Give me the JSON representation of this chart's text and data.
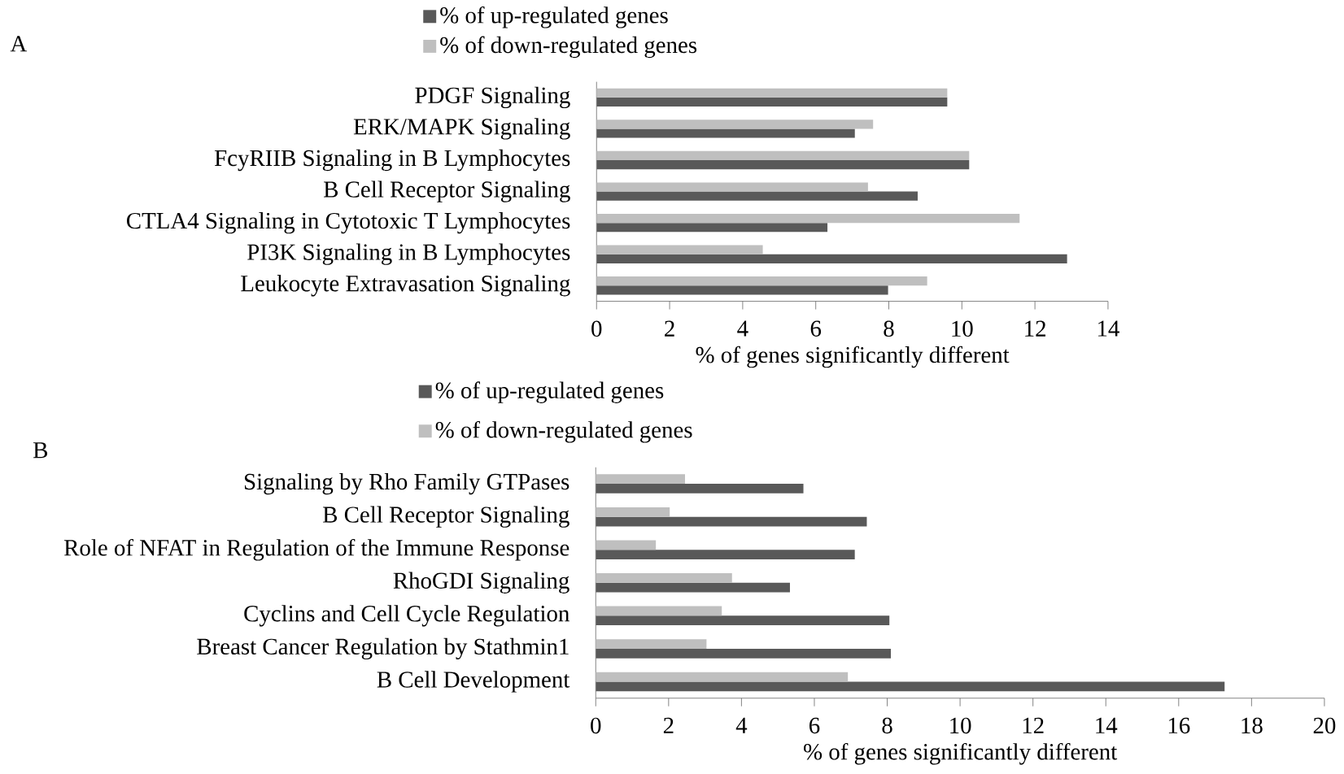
{
  "chart_data": [
    {
      "type": "bar",
      "orientation": "horizontal",
      "title": "A",
      "legend": "top",
      "xlabel": "% of genes significantly different",
      "categories": [
        "PDGF Signaling",
        "ERK/MAPK Signaling",
        "FcyRIIB Signaling in B Lymphocytes",
        "B Cell Receptor Signaling",
        "CTLA4 Signaling in Cytotoxic T Lymphocytes",
        "PI3K Signaling in B Lymphocytes",
        "Leukocyte Extravasation Signaling"
      ],
      "series": [
        {
          "name": "% of up-regulated genes",
          "color": "#595959",
          "values": [
            9.6,
            7.07,
            10.2,
            8.79,
            6.32,
            12.88,
            7.98
          ]
        },
        {
          "name": "% of down-regulated genes",
          "color": "#bfbfbf",
          "values": [
            9.6,
            7.57,
            10.2,
            7.43,
            11.58,
            4.55,
            9.05
          ]
        }
      ],
      "xlim": [
        0,
        14
      ],
      "xticks": [
        0,
        2,
        4,
        6,
        8,
        10,
        12,
        14
      ]
    },
    {
      "type": "bar",
      "orientation": "horizontal",
      "title": "B",
      "legend": "top",
      "xlabel": "% of genes significantly different",
      "categories": [
        "Signaling by Rho Family GTPases",
        "B Cell Receptor Signaling",
        "Role of NFAT in Regulation of the Immune Response",
        "RhoGDI Signaling",
        "Cyclins and Cell Cycle Regulation",
        "Breast Cancer Regulation by Stathmin1",
        "B Cell Development"
      ],
      "series": [
        {
          "name": "% of up-regulated genes",
          "color": "#595959",
          "values": [
            5.7,
            7.44,
            7.11,
            5.33,
            8.06,
            8.1,
            17.26
          ]
        },
        {
          "name": "% of down-regulated genes",
          "color": "#bfbfbf",
          "values": [
            2.45,
            2.03,
            1.65,
            3.74,
            3.46,
            3.04,
            6.92
          ]
        }
      ],
      "xlim": [
        0,
        20
      ],
      "xticks": [
        0,
        2,
        4,
        6,
        8,
        10,
        12,
        14,
        16,
        18,
        20
      ]
    }
  ]
}
